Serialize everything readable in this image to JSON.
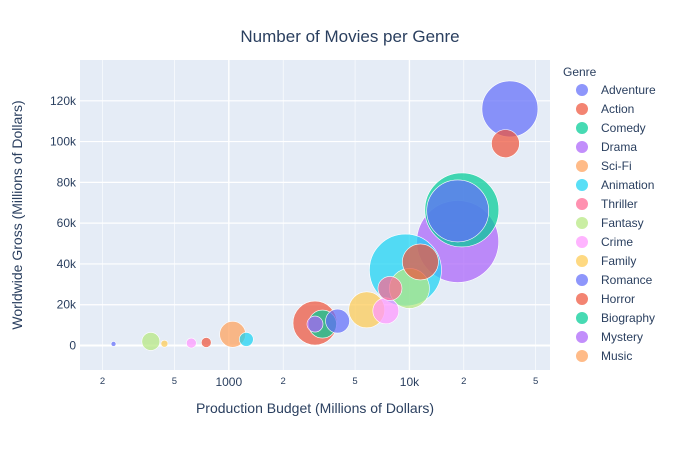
{
  "chart_data": {
    "type": "scatter",
    "title": "Number of Movies per Genre",
    "xlabel": "Production Budget (Millions of Dollars)",
    "ylabel": "Worldwide Gross (Millions of Dollars)",
    "x_scale": "log",
    "xlim": [
      150,
      60000
    ],
    "ylim": [
      -12000,
      140000
    ],
    "grid": true,
    "legend_title": "Genre",
    "legend_position": "right",
    "x_major_ticks": [
      {
        "value": 1000,
        "label": "1000"
      },
      {
        "value": 10000,
        "label": "10k"
      }
    ],
    "x_minor_ticks": [
      {
        "value": 200,
        "label": "2"
      },
      {
        "value": 500,
        "label": "5"
      },
      {
        "value": 2000,
        "label": "2"
      },
      {
        "value": 5000,
        "label": "5"
      },
      {
        "value": 20000,
        "label": "2"
      },
      {
        "value": 50000,
        "label": "5"
      }
    ],
    "y_ticks": [
      {
        "value": 0,
        "label": "0"
      },
      {
        "value": 20000,
        "label": "20k"
      },
      {
        "value": 40000,
        "label": "40k"
      },
      {
        "value": 60000,
        "label": "60k"
      },
      {
        "value": 80000,
        "label": "80k"
      },
      {
        "value": 100000,
        "label": "100k"
      },
      {
        "value": 120000,
        "label": "120k"
      }
    ],
    "series": [
      {
        "name": "Adventure",
        "color": "#636efa",
        "points": [
          {
            "x": 36000,
            "y": 116000,
            "size": 56
          },
          {
            "x": 18500,
            "y": 66000,
            "size": 62
          },
          {
            "x": 4000,
            "y": 12000,
            "size": 24
          },
          {
            "x": 230,
            "y": 800,
            "size": 5
          }
        ]
      },
      {
        "name": "Action",
        "color": "#EF553B",
        "points": [
          {
            "x": 34000,
            "y": 99000,
            "size": 28
          },
          {
            "x": 11500,
            "y": 41000,
            "size": 36
          },
          {
            "x": 3000,
            "y": 11000,
            "size": 44
          },
          {
            "x": 750,
            "y": 1500,
            "size": 10
          }
        ]
      },
      {
        "name": "Comedy",
        "color": "#00cc96",
        "points": [
          {
            "x": 19500,
            "y": 66500,
            "size": 74
          },
          {
            "x": 3300,
            "y": 10500,
            "size": 28
          }
        ]
      },
      {
        "name": "Drama",
        "color": "#ab63fa",
        "points": [
          {
            "x": 18500,
            "y": 51000,
            "size": 82
          },
          {
            "x": 3000,
            "y": 10500,
            "size": 16
          }
        ]
      },
      {
        "name": "Sci-Fi",
        "color": "#FFA15A",
        "points": [
          {
            "x": 1050,
            "y": 5500,
            "size": 26
          }
        ]
      },
      {
        "name": "Animation",
        "color": "#19d3f3",
        "points": [
          {
            "x": 9500,
            "y": 37000,
            "size": 72
          },
          {
            "x": 1250,
            "y": 3000,
            "size": 14
          }
        ]
      },
      {
        "name": "Thriller",
        "color": "#FF6692",
        "points": [
          {
            "x": 7800,
            "y": 28000,
            "size": 24
          }
        ]
      },
      {
        "name": "Fantasy",
        "color": "#B6E880",
        "points": [
          {
            "x": 10000,
            "y": 28000,
            "size": 40
          },
          {
            "x": 370,
            "y": 2000,
            "size": 18
          }
        ]
      },
      {
        "name": "Crime",
        "color": "#FF97FF",
        "points": [
          {
            "x": 7400,
            "y": 17000,
            "size": 26
          },
          {
            "x": 620,
            "y": 1200,
            "size": 10
          }
        ]
      },
      {
        "name": "Family",
        "color": "#FECB52",
        "points": [
          {
            "x": 5800,
            "y": 17500,
            "size": 36
          },
          {
            "x": 440,
            "y": 900,
            "size": 7
          }
        ]
      }
    ],
    "legend_only": [
      {
        "name": "Romance",
        "color": "#636efa"
      },
      {
        "name": "Horror",
        "color": "#EF553B"
      },
      {
        "name": "Biography",
        "color": "#00cc96"
      },
      {
        "name": "Mystery",
        "color": "#ab63fa"
      },
      {
        "name": "Music",
        "color": "#FFA15A"
      }
    ]
  }
}
